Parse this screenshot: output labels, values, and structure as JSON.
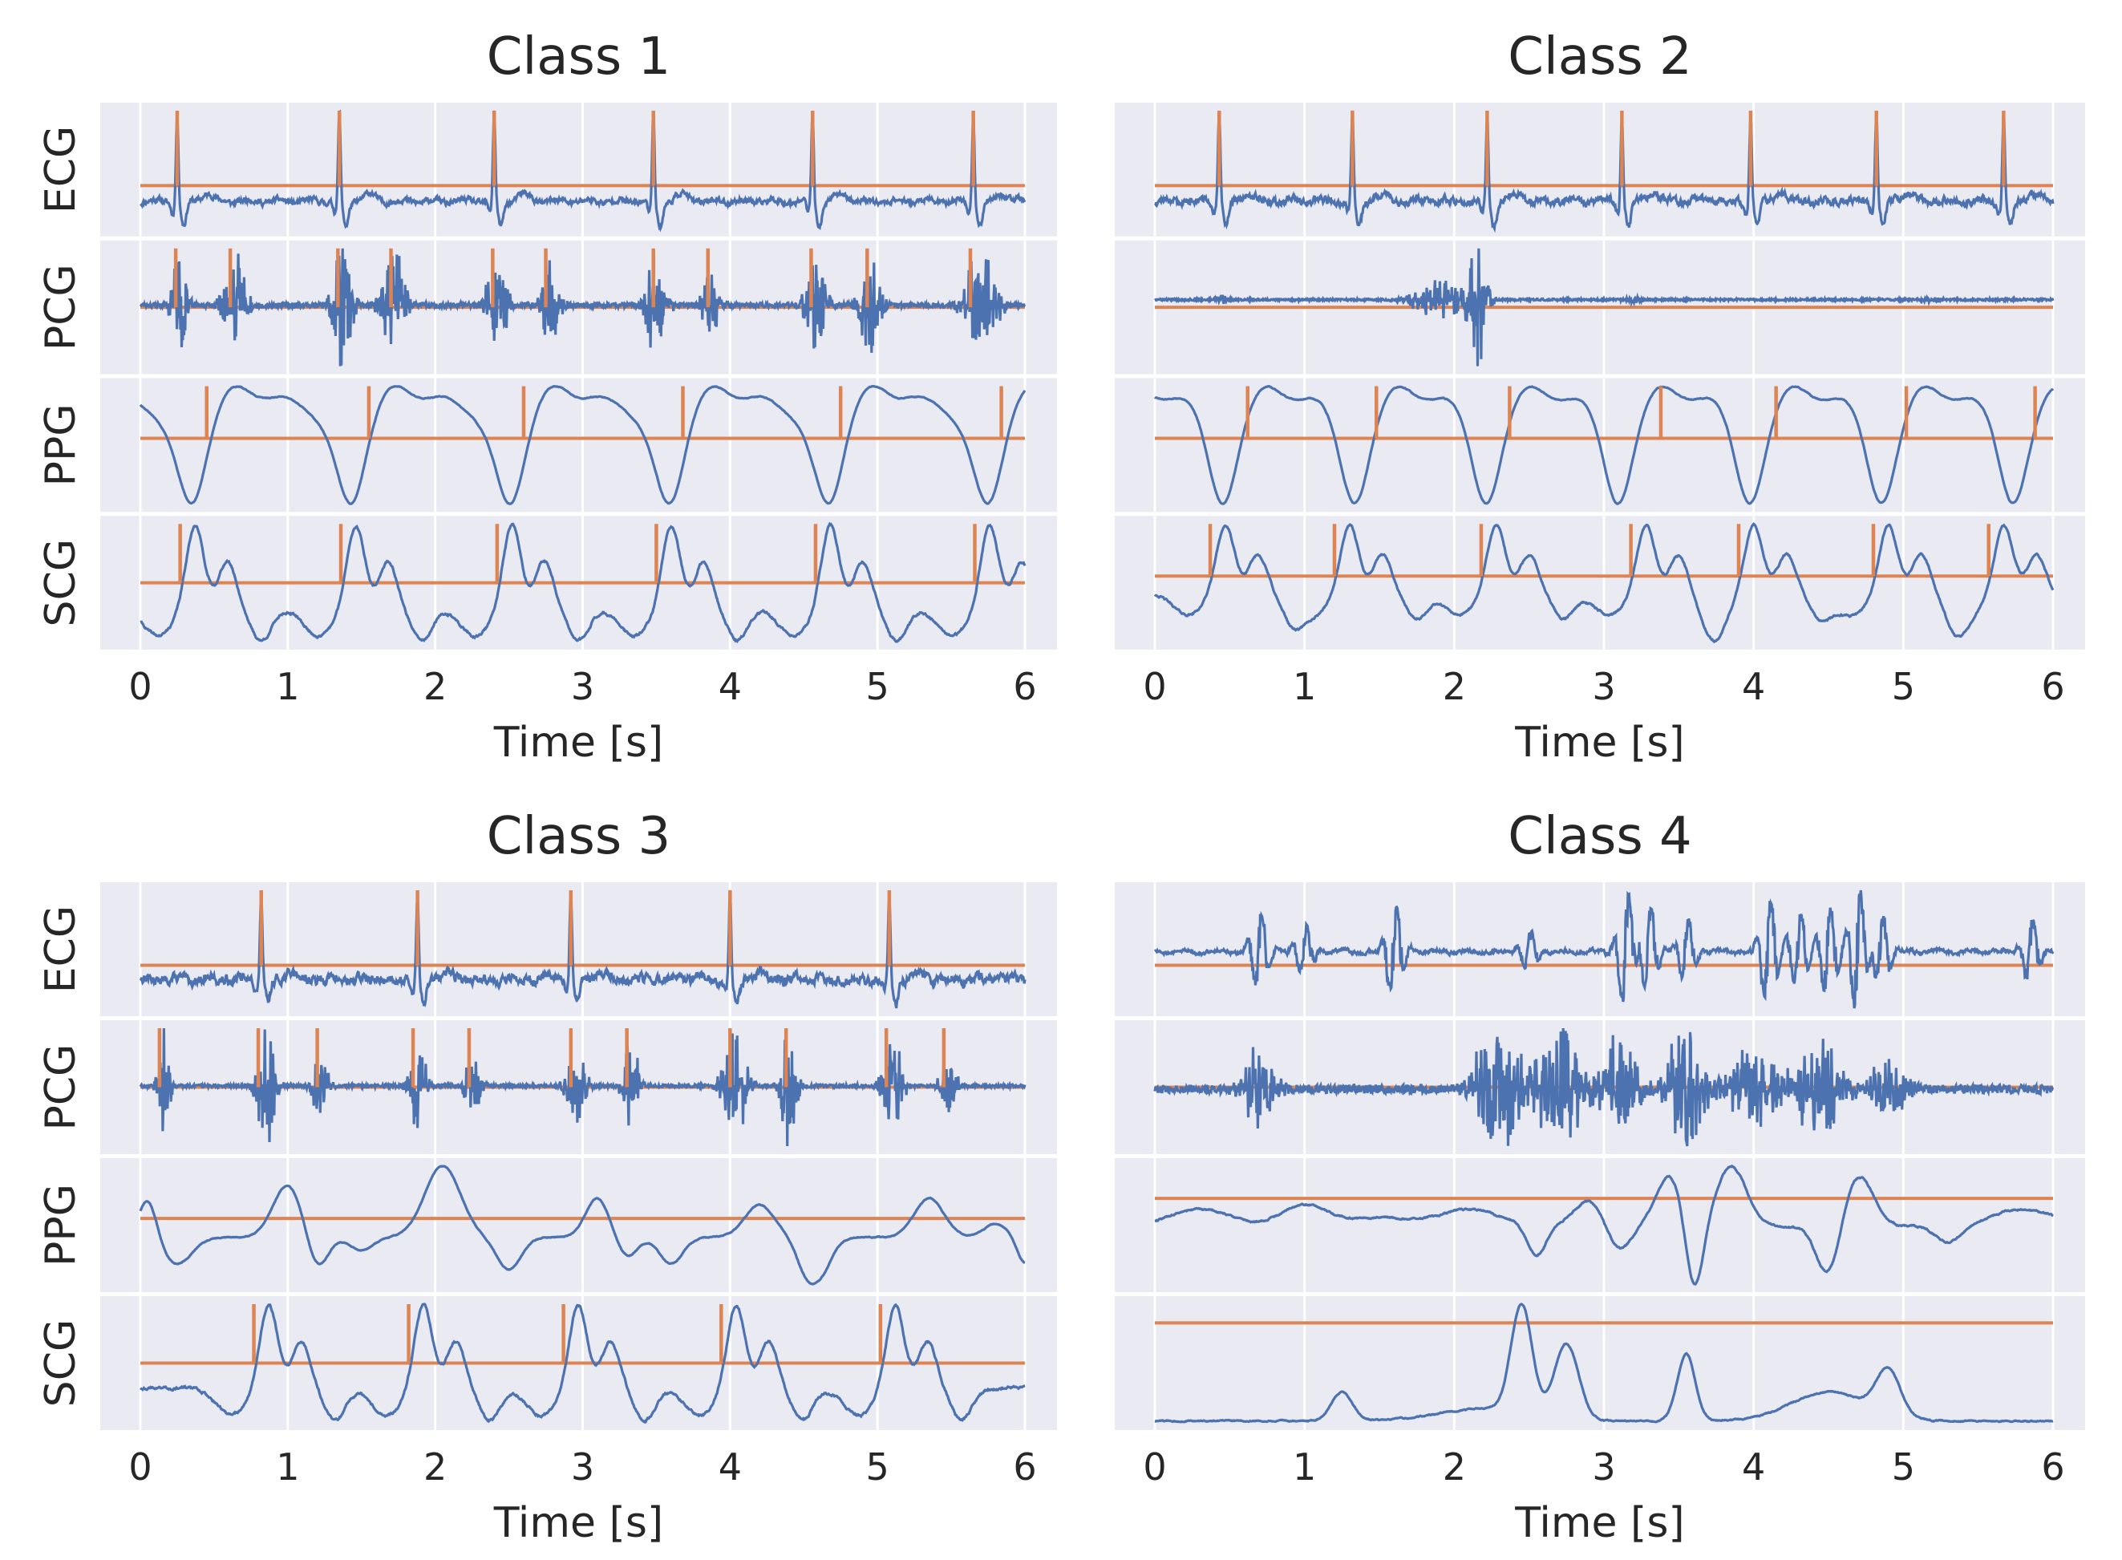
{
  "figure": {
    "background": "#ffffff",
    "panel_background": "#eaeaf2",
    "grid_color": "#ffffff",
    "signal_color": "#4c72b0",
    "marker_color": "#dd8452"
  },
  "chart_data": [
    {
      "type": "line",
      "title": "Class 1",
      "xlabel": "Time [s]",
      "xlim": [
        0,
        6
      ],
      "xticks": [
        "0",
        "1",
        "2",
        "3",
        "4",
        "5",
        "6"
      ],
      "grid": true,
      "rows": [
        {
          "label": "ECG",
          "peak_markers_s": [
            0.25,
            1.35,
            2.4,
            3.48,
            4.56,
            5.65
          ]
        },
        {
          "label": "PCG",
          "peak_markers_s": [
            0.24,
            0.61,
            1.34,
            1.7,
            2.39,
            2.75,
            3.48,
            3.85,
            4.55,
            4.93,
            5.63
          ]
        },
        {
          "label": "PPG",
          "peak_markers_s": [
            0.45,
            1.55,
            2.6,
            3.68,
            4.75,
            5.84
          ]
        },
        {
          "label": "SCG",
          "peak_markers_s": [
            0.27,
            1.36,
            2.42,
            3.5,
            4.58,
            5.66
          ]
        }
      ]
    },
    {
      "type": "line",
      "title": "Class 2",
      "xlabel": "Time [s]",
      "xlim": [
        0,
        6
      ],
      "xticks": [
        "0",
        "1",
        "2",
        "3",
        "4",
        "5",
        "6"
      ],
      "grid": true,
      "rows": [
        {
          "label": "",
          "peak_markers_s": [
            0.43,
            1.32,
            2.22,
            3.12,
            3.98,
            4.82,
            5.67
          ]
        },
        {
          "label": "",
          "peak_markers_s": []
        },
        {
          "label": "",
          "peak_markers_s": [
            0.62,
            1.48,
            2.37,
            3.38,
            4.15,
            5.02,
            5.88
          ]
        },
        {
          "label": "",
          "peak_markers_s": [
            0.37,
            1.2,
            2.18,
            3.18,
            3.9,
            4.8,
            5.57
          ]
        }
      ]
    },
    {
      "type": "line",
      "title": "Class 3",
      "xlabel": "Time [s]",
      "xlim": [
        0,
        6
      ],
      "xticks": [
        "0",
        "1",
        "2",
        "3",
        "4",
        "5",
        "6"
      ],
      "grid": true,
      "rows": [
        {
          "label": "ECG",
          "peak_markers_s": [
            0.82,
            1.88,
            2.92,
            4.0,
            5.08
          ]
        },
        {
          "label": "PCG",
          "peak_markers_s": [
            0.13,
            0.8,
            1.2,
            1.85,
            2.23,
            2.92,
            3.3,
            4.0,
            4.38,
            5.06,
            5.45
          ]
        },
        {
          "label": "PPG",
          "peak_markers_s": []
        },
        {
          "label": "SCG",
          "peak_markers_s": [
            0.77,
            1.82,
            2.87,
            3.94,
            5.02
          ]
        }
      ]
    },
    {
      "type": "line",
      "title": "Class 4",
      "xlabel": "Time [s]",
      "xlim": [
        0,
        6
      ],
      "xticks": [
        "0",
        "1",
        "2",
        "3",
        "4",
        "5",
        "6"
      ],
      "grid": true,
      "rows": [
        {
          "label": "",
          "peak_markers_s": []
        },
        {
          "label": "",
          "peak_markers_s": []
        },
        {
          "label": "",
          "peak_markers_s": []
        },
        {
          "label": "",
          "peak_markers_s": []
        }
      ]
    }
  ]
}
